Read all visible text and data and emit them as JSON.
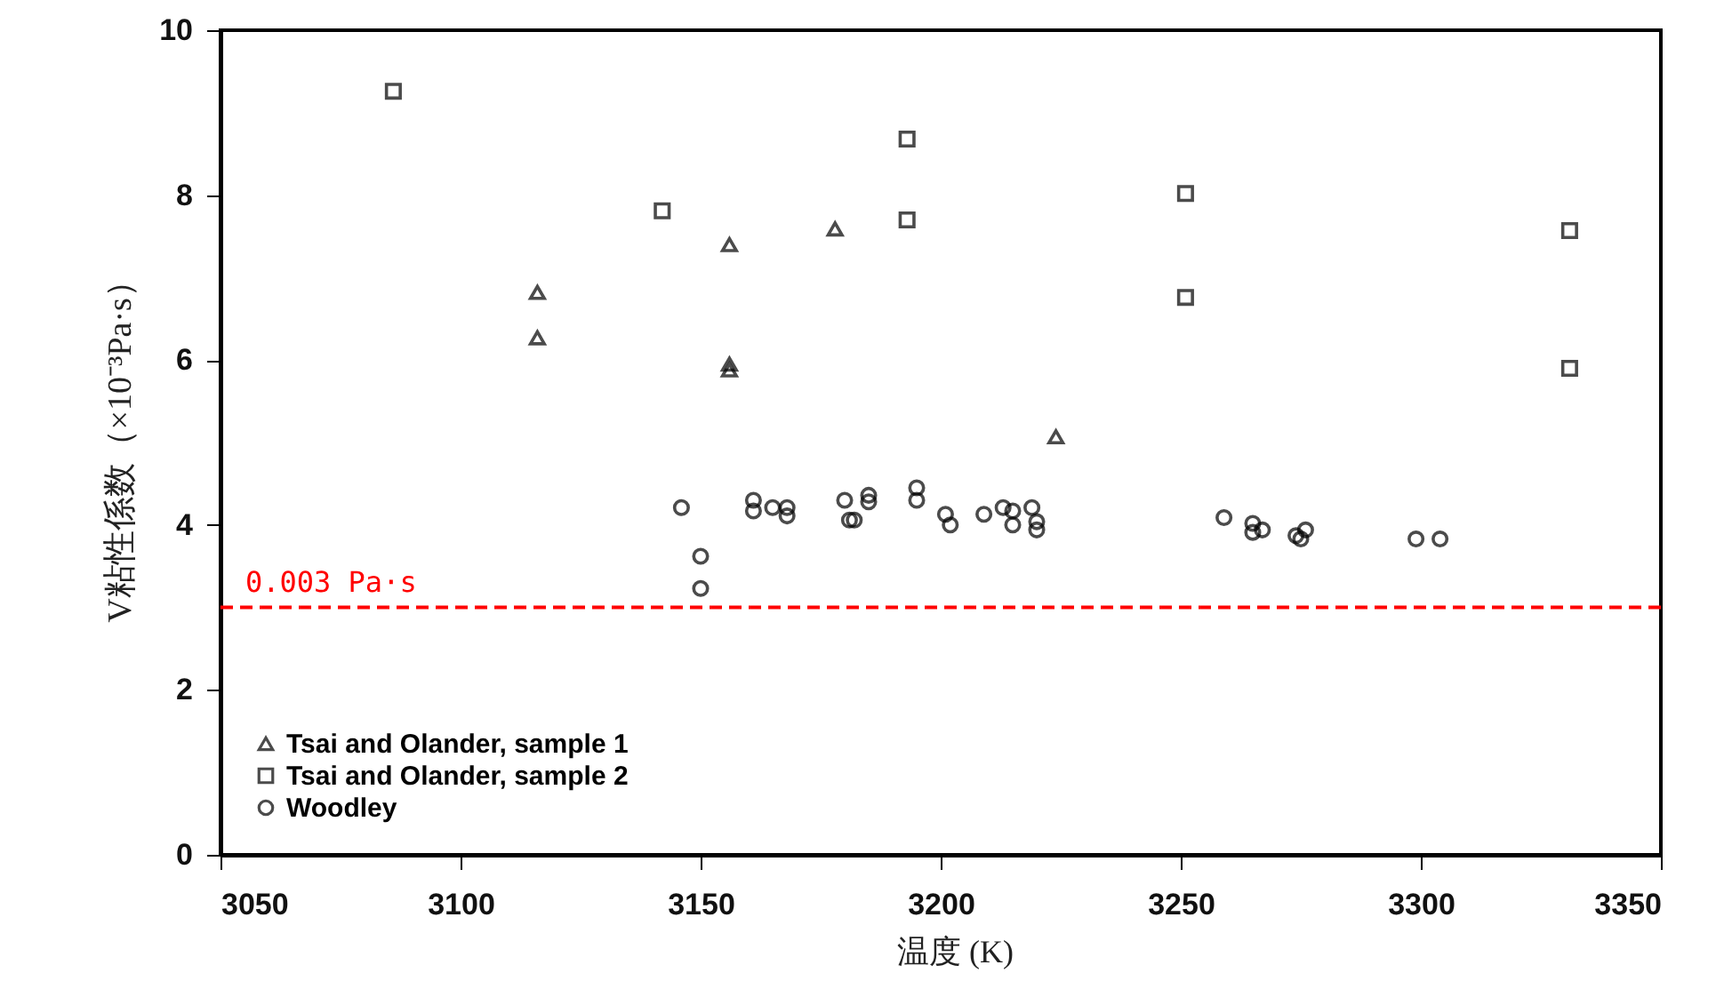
{
  "chart_data": {
    "type": "scatter",
    "xlabel": "温度 (K)",
    "ylabel": "V粘性係数（×10⁻³Pa·s）",
    "xlim": [
      3050,
      3350
    ],
    "xticks": [
      3050,
      3100,
      3150,
      3200,
      3250,
      3300,
      3350
    ],
    "ylim": [
      0,
      10
    ],
    "yticks": [
      0,
      2,
      4,
      6,
      8,
      10
    ],
    "grid": false,
    "legend": "bottom left",
    "series": [
      {
        "name": "Tsai and Olander, sample 1",
        "color": "#000000",
        "marker": "triangle",
        "x": [
          3116,
          3116,
          3156,
          3156,
          3156,
          3178,
          3224
        ],
        "values": [
          6.82,
          6.27,
          7.4,
          5.95,
          5.88,
          7.59,
          5.07
        ]
      },
      {
        "name": "Tsai and Olander, sample 2",
        "color": "#000000",
        "marker": "square",
        "x": [
          3086,
          3142,
          3193,
          3193,
          3251,
          3251,
          3331,
          3331
        ],
        "values": [
          9.26,
          7.81,
          8.68,
          7.7,
          8.02,
          6.76,
          7.57,
          5.9
        ]
      },
      {
        "name": "Woodley",
        "color": "#000000",
        "marker": "circle",
        "x": [
          3146,
          3150,
          3150,
          3161,
          3161,
          3165,
          3168,
          3168,
          3180,
          3181,
          3182,
          3185,
          3185,
          3195,
          3195,
          3201,
          3202,
          3209,
          3213,
          3215,
          3215,
          3219,
          3220,
          3220,
          3259,
          3265,
          3265,
          3267,
          3274,
          3276,
          3275,
          3299,
          3304
        ],
        "values": [
          4.21,
          3.62,
          3.23,
          4.3,
          4.17,
          4.21,
          4.21,
          4.11,
          4.3,
          4.06,
          4.06,
          4.36,
          4.28,
          4.45,
          4.3,
          4.13,
          4.0,
          4.13,
          4.21,
          4.17,
          4.0,
          4.21,
          4.04,
          3.94,
          4.09,
          4.02,
          3.91,
          3.94,
          3.87,
          3.94,
          3.83,
          3.83,
          3.83
        ]
      }
    ],
    "ref_lines": [
      {
        "axis": "y",
        "value": 3,
        "label": "0.003 Pa·s",
        "color": "#ff0000",
        "line_style": "dashed"
      }
    ]
  }
}
